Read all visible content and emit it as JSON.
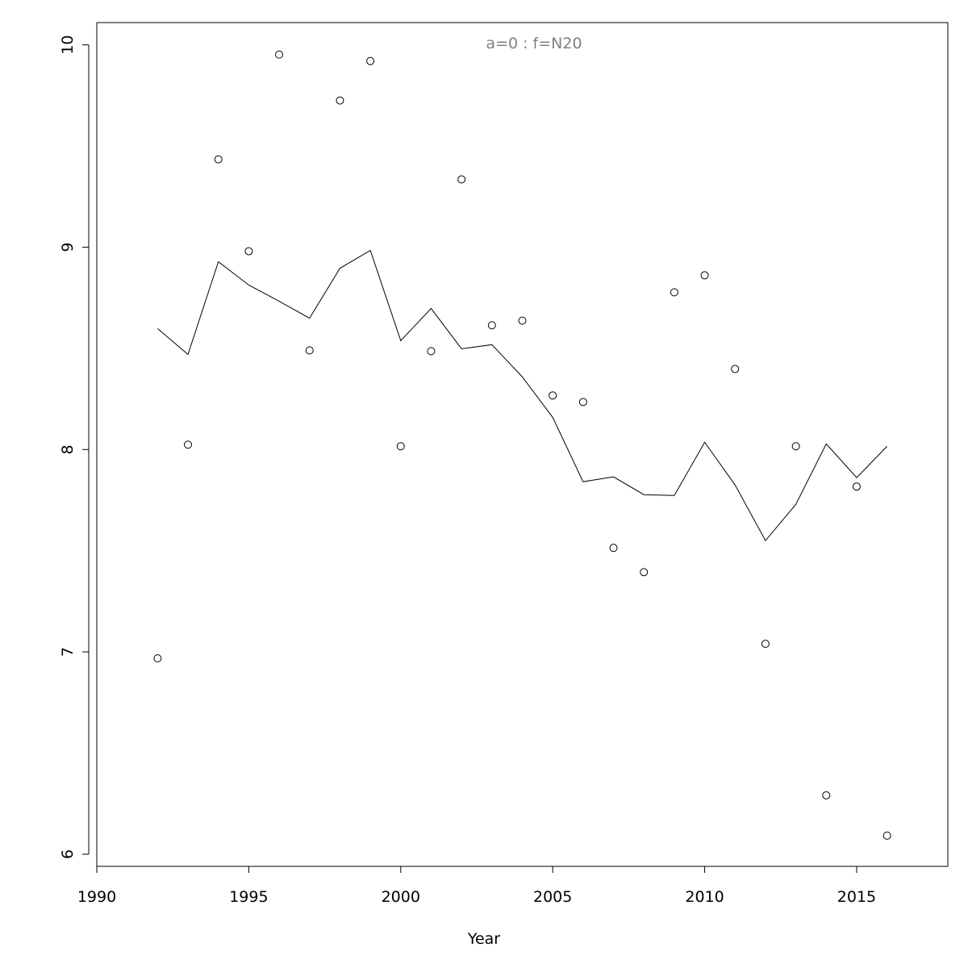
{
  "chart_data": {
    "type": "scatter",
    "title": "a=0  :  f=N20",
    "x_label": "Year",
    "x": [
      1992,
      1993,
      1994,
      1995,
      1996,
      1997,
      1998,
      1999,
      2000,
      2001,
      2002,
      2003,
      2004,
      2005,
      2006,
      2007,
      2008,
      2009,
      2010,
      2011,
      2012,
      2013,
      2014,
      2015,
      2016
    ],
    "series": [
      {
        "mode": "points",
        "color": "#000000",
        "values": [
          6.968,
          8.024,
          9.434,
          8.98,
          9.952,
          8.49,
          9.725,
          9.92,
          8.016,
          8.486,
          9.335,
          8.614,
          8.637,
          8.267,
          8.235,
          7.514,
          7.394,
          8.777,
          8.861,
          8.398,
          7.04,
          8.016,
          6.291,
          7.817,
          6.092
        ]
      },
      {
        "mode": "line",
        "color": "#000000",
        "values": [
          8.598,
          8.47,
          8.928,
          8.813,
          8.733,
          8.649,
          8.896,
          8.984,
          8.538,
          8.697,
          8.498,
          8.518,
          8.359,
          8.159,
          7.841,
          7.865,
          7.777,
          7.773,
          8.036,
          7.825,
          7.55,
          7.729,
          8.028,
          7.861,
          8.016
        ]
      }
    ],
    "xlim": [
      1990,
      2018
    ],
    "xticks": [
      1990,
      1995,
      2000,
      2005,
      2010,
      2015
    ],
    "ylim": [
      5.94,
      10.11
    ],
    "yticks": [
      6,
      7,
      8,
      9,
      10
    ]
  }
}
